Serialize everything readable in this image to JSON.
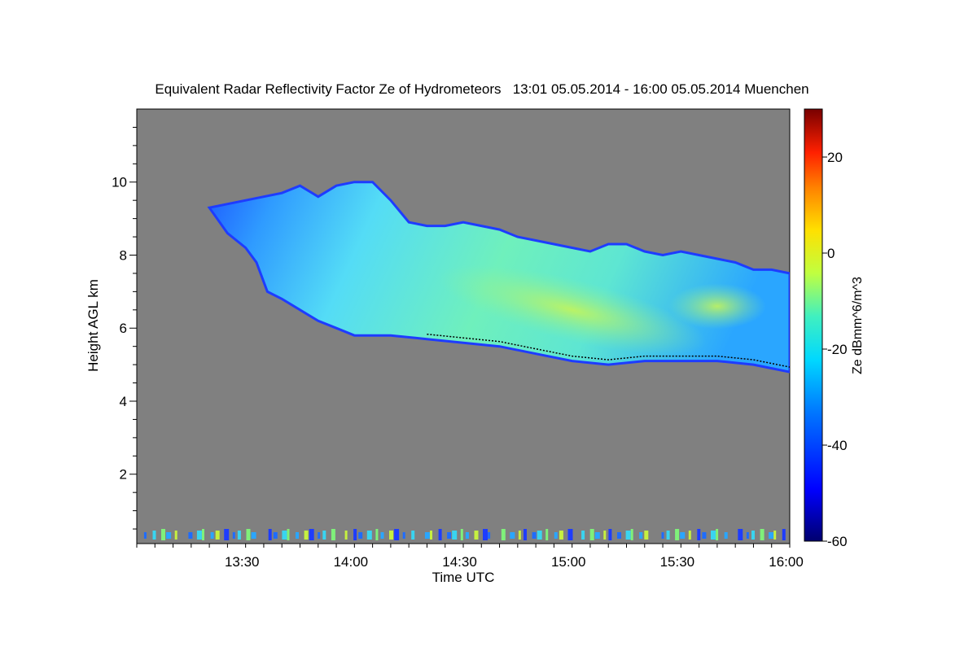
{
  "chart_data": {
    "type": "heatmap",
    "title": "Equivalent Radar Reflectivity Factor Ze of Hydrometeors   13:01 05.05.2014 - 16:00 05.05.2014 Muenchen",
    "xlabel": "Time UTC",
    "ylabel": "Height AGL km",
    "x_range": [
      "13:01",
      "16:01"
    ],
    "y_range_km": [
      0.1,
      12.0
    ],
    "x_ticks": [
      {
        "label": "13:30",
        "min": 29
      },
      {
        "label": "14:00",
        "min": 59
      },
      {
        "label": "14:30",
        "min": 89
      },
      {
        "label": "15:00",
        "min": 119
      },
      {
        "label": "15:30",
        "min": 149
      },
      {
        "label": "16:00",
        "min": 179
      }
    ],
    "y_ticks": [
      2,
      4,
      6,
      8,
      10
    ],
    "colorbar": {
      "label": "Ze dBmm^6/m^3",
      "range": [
        -60,
        30
      ],
      "ticks": [
        -60,
        -40,
        -20,
        0,
        20
      ],
      "tick_labels": [
        "-60",
        "-40",
        "-20",
        "0",
        "20"
      ]
    },
    "background_color": "#808080",
    "echo_layer": {
      "top_km": [
        [
          20,
          9.3
        ],
        [
          25,
          9.4
        ],
        [
          30,
          9.5
        ],
        [
          35,
          9.6
        ],
        [
          40,
          9.7
        ],
        [
          45,
          9.9
        ],
        [
          50,
          9.6
        ],
        [
          55,
          9.9
        ],
        [
          60,
          10.0
        ],
        [
          65,
          10.0
        ],
        [
          70,
          9.5
        ],
        [
          75,
          8.9
        ],
        [
          80,
          8.8
        ],
        [
          85,
          8.8
        ],
        [
          90,
          8.9
        ],
        [
          95,
          8.8
        ],
        [
          100,
          8.7
        ],
        [
          105,
          8.5
        ],
        [
          110,
          8.4
        ],
        [
          115,
          8.3
        ],
        [
          120,
          8.2
        ],
        [
          125,
          8.1
        ],
        [
          130,
          8.3
        ],
        [
          135,
          8.3
        ],
        [
          140,
          8.1
        ],
        [
          145,
          8.0
        ],
        [
          150,
          8.1
        ],
        [
          155,
          8.0
        ],
        [
          160,
          7.9
        ],
        [
          165,
          7.8
        ],
        [
          170,
          7.6
        ],
        [
          175,
          7.6
        ],
        [
          180,
          7.5
        ]
      ],
      "base_km": [
        [
          20,
          9.3
        ],
        [
          25,
          8.6
        ],
        [
          30,
          8.2
        ],
        [
          33,
          7.8
        ],
        [
          36,
          7.0
        ],
        [
          40,
          6.8
        ],
        [
          45,
          6.5
        ],
        [
          50,
          6.2
        ],
        [
          55,
          6.0
        ],
        [
          60,
          5.8
        ],
        [
          70,
          5.8
        ],
        [
          80,
          5.7
        ],
        [
          90,
          5.6
        ],
        [
          100,
          5.5
        ],
        [
          110,
          5.3
        ],
        [
          120,
          5.1
        ],
        [
          130,
          5.0
        ],
        [
          140,
          5.1
        ],
        [
          150,
          5.1
        ],
        [
          160,
          5.1
        ],
        [
          170,
          5.0
        ],
        [
          175,
          4.9
        ],
        [
          180,
          4.8
        ]
      ]
    }
  }
}
